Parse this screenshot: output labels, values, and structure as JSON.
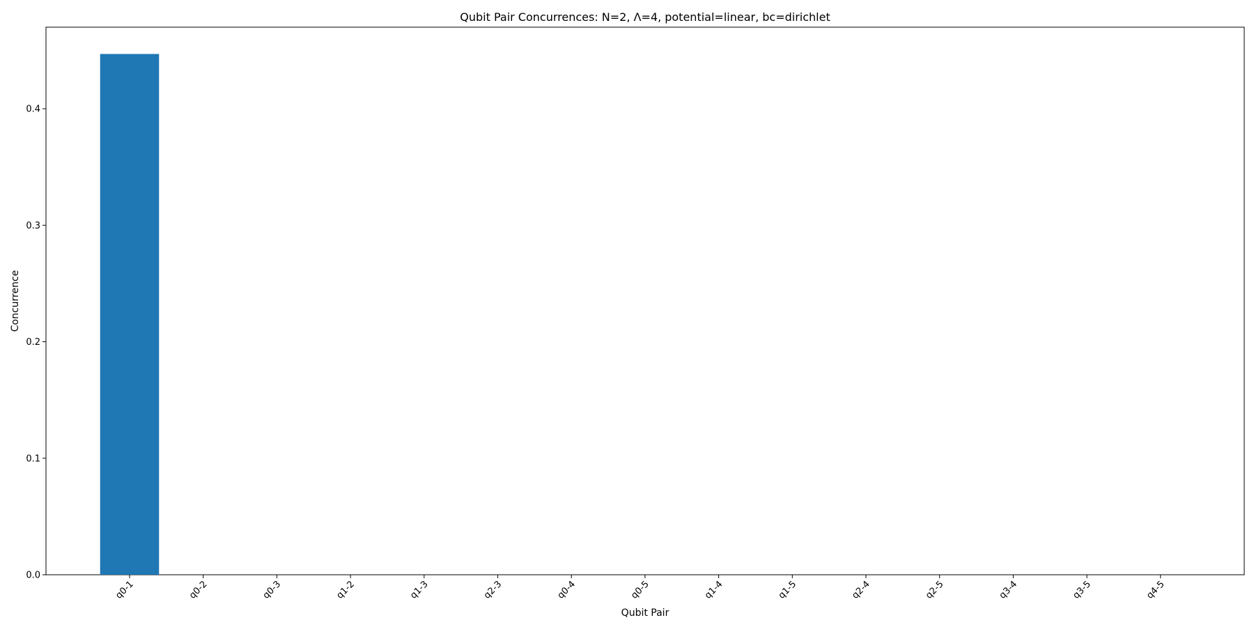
{
  "chart_data": {
    "type": "bar",
    "title": "Qubit Pair Concurrences: N=2, Λ=4, potential=linear, bc=dirichlet",
    "xlabel": "Qubit Pair",
    "ylabel": "Concurrence",
    "categories": [
      "q0-1",
      "q0-2",
      "q0-3",
      "q1-2",
      "q1-3",
      "q2-3",
      "q0-4",
      "q0-5",
      "q1-4",
      "q1-5",
      "q2-4",
      "q2-5",
      "q3-4",
      "q3-5",
      "q4-5"
    ],
    "values": [
      0.447,
      0,
      0,
      0,
      0,
      0,
      0,
      0,
      0,
      0,
      0,
      0,
      0,
      0,
      0
    ],
    "ylim": [
      0,
      0.47
    ],
    "yticks": [
      0.0,
      0.1,
      0.2,
      0.3,
      0.4
    ],
    "ytick_labels": [
      "0.0",
      "0.1",
      "0.2",
      "0.3",
      "0.4"
    ],
    "xtick_rotation_deg": 45,
    "bar_color": "#1f77b4",
    "grid": false,
    "legend": "none"
  }
}
